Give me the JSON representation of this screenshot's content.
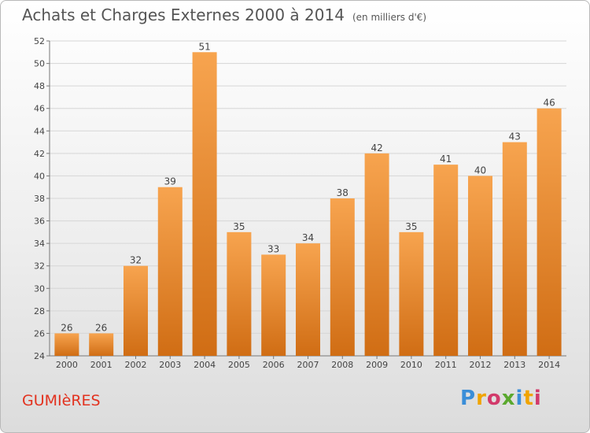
{
  "title": "Achats et Charges Externes 2000 à 2014",
  "unit": "(en milliers d'€)",
  "city": "GUMIèRES",
  "logo": {
    "letters": [
      "P",
      "r",
      "o",
      "x",
      "i",
      "t",
      "i"
    ]
  },
  "colors": {
    "bar_top": "#f7a44f",
    "bar_bottom": "#d06d14",
    "title": "#555555",
    "city": "#e2321f"
  },
  "chart_data": {
    "type": "bar",
    "title": "Achats et Charges Externes 2000 à 2014",
    "subtitle": "(en milliers d'€)",
    "categories": [
      "2000",
      "2001",
      "2002",
      "2003",
      "2004",
      "2005",
      "2006",
      "2007",
      "2008",
      "2009",
      "2010",
      "2011",
      "2012",
      "2013",
      "2014"
    ],
    "values": [
      26,
      26,
      32,
      39,
      51,
      35,
      33,
      34,
      38,
      42,
      35,
      41,
      40,
      43,
      46
    ],
    "ylim": [
      24,
      52
    ],
    "yticks": [
      24,
      26,
      28,
      30,
      32,
      34,
      36,
      38,
      40,
      42,
      44,
      46,
      48,
      50,
      52
    ],
    "grid": "horizontal",
    "data_labels": true
  }
}
